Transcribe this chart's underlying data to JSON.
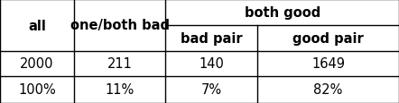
{
  "data_rows": [
    [
      "2000",
      "211",
      "140",
      "1649"
    ],
    [
      "100%",
      "11%",
      "7%",
      "82%"
    ]
  ],
  "header_top_labels": [
    "all",
    "one/both bad",
    "both good"
  ],
  "header_bot_labels": [
    "bad pair",
    "good pair"
  ],
  "background_color": "#ffffff",
  "line_color": "#000000",
  "fontsize_header": 10.5,
  "fontsize_data": 10.5,
  "col_lines": [
    0.0,
    0.185,
    0.415,
    0.645,
    1.0
  ],
  "row_lines": [
    1.0,
    0.5,
    0.26,
    0.0
  ],
  "header_mid": 0.75
}
